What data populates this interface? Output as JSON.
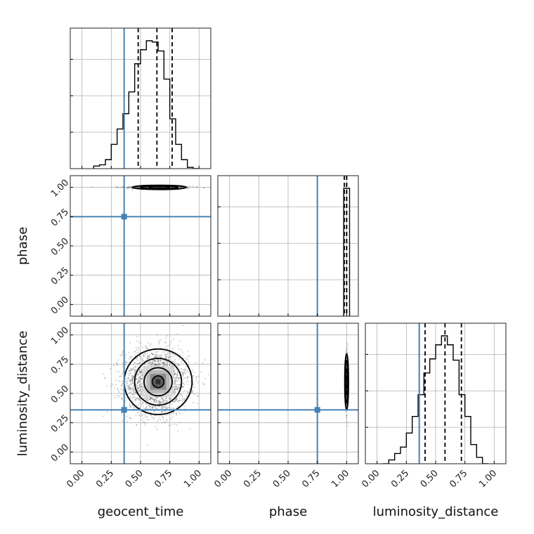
{
  "chart_data": {
    "type": "corner",
    "parameters": [
      "geocent_time",
      "phase",
      "luminosity_distance"
    ],
    "axis_range": [
      -0.1,
      1.1
    ],
    "tick_values": [
      0.0,
      0.25,
      0.5,
      0.75,
      1.0
    ],
    "tick_labels": [
      "0.00",
      "0.25",
      "0.50",
      "0.75",
      "1.00"
    ],
    "grid": true,
    "truths": {
      "geocent_time": 0.36,
      "phase": 0.75,
      "luminosity_distance": 0.36
    },
    "truth_color": "#4682b4",
    "hist_color": "#000000",
    "marginals": [
      {
        "parameter": "geocent_time",
        "bin_edges": [
          0.1,
          0.15,
          0.2,
          0.25,
          0.3,
          0.35,
          0.4,
          0.45,
          0.5,
          0.55,
          0.6,
          0.65,
          0.7,
          0.75,
          0.8,
          0.85,
          0.9,
          0.95,
          1.0
        ],
        "counts": [
          0.02,
          0.03,
          0.07,
          0.19,
          0.31,
          0.43,
          0.6,
          0.82,
          0.93,
          1.0,
          0.99,
          0.92,
          0.7,
          0.39,
          0.19,
          0.07,
          0.01,
          0.0
        ],
        "quantiles": [
          0.48,
          0.64,
          0.77
        ]
      },
      {
        "parameter": "phase",
        "bin_edges": [
          0.975,
          1.025
        ],
        "counts": [
          1.0
        ],
        "quantiles": [
          0.98,
          1.0,
          1.0
        ]
      },
      {
        "parameter": "luminosity_distance",
        "bin_edges": [
          0.05,
          0.1,
          0.15,
          0.2,
          0.25,
          0.3,
          0.35,
          0.4,
          0.45,
          0.5,
          0.55,
          0.6,
          0.65,
          0.7,
          0.75,
          0.8,
          0.85,
          0.9,
          0.95
        ],
        "counts": [
          0.0,
          0.03,
          0.08,
          0.13,
          0.24,
          0.37,
          0.54,
          0.71,
          0.82,
          0.93,
          1.0,
          0.93,
          0.81,
          0.54,
          0.37,
          0.15,
          0.05,
          0.0
        ],
        "quantiles": [
          0.41,
          0.58,
          0.72
        ]
      }
    ],
    "joint_panels": [
      {
        "x": "geocent_time",
        "y": "phase",
        "scatter_center": [
          0.65,
          1.0
        ],
        "scatter_spread": [
          0.14,
          0.006
        ],
        "scatter_count": 500,
        "density_center": [
          0.66,
          1.0
        ],
        "density_size": [
          0.2,
          0.022
        ],
        "contour_widths": [
          [
            0.09,
            0.008
          ],
          [
            0.16,
            0.012
          ],
          [
            0.23,
            0.018
          ]
        ]
      },
      {
        "x": "geocent_time",
        "y": "luminosity_distance",
        "scatter_center": [
          0.63,
          0.6
        ],
        "scatter_spread": [
          0.14,
          0.14
        ],
        "scatter_count": 2200,
        "density_center": [
          0.65,
          0.6
        ],
        "density_size": [
          0.26,
          0.26
        ],
        "contour_widths": [
          [
            0.05,
            0.05
          ],
          [
            0.12,
            0.12
          ],
          [
            0.2,
            0.2
          ],
          [
            0.29,
            0.28
          ]
        ]
      },
      {
        "x": "phase",
        "y": "luminosity_distance",
        "scatter_center": [
          1.0,
          0.6
        ],
        "scatter_spread": [
          0.005,
          0.11
        ],
        "scatter_count": 400,
        "density_center": [
          1.0,
          0.6
        ],
        "density_size": [
          0.012,
          0.22
        ],
        "contour_widths": [
          [
            0.004,
            0.05
          ],
          [
            0.008,
            0.11
          ],
          [
            0.012,
            0.18
          ],
          [
            0.016,
            0.24
          ]
        ]
      }
    ]
  }
}
